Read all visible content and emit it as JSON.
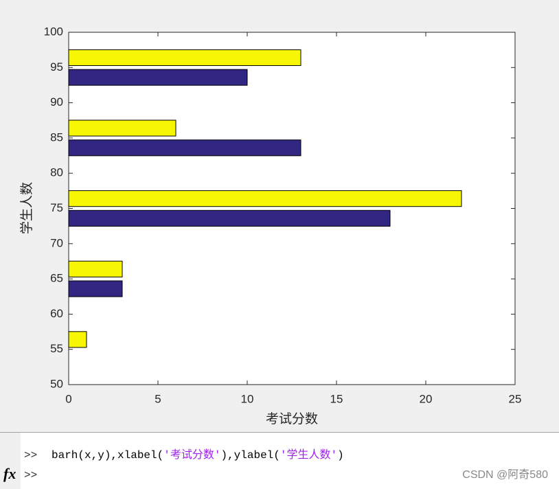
{
  "chart_data": {
    "type": "barh",
    "y": [
      55,
      65,
      75,
      85,
      95
    ],
    "series": [
      {
        "color": "#312783",
        "values": [
          0,
          3,
          18,
          13,
          10
        ]
      },
      {
        "color": "#f7f704",
        "values": [
          1,
          3,
          22,
          6,
          13
        ]
      }
    ],
    "xlim": [
      0,
      25
    ],
    "xticks": [
      0,
      5,
      10,
      15,
      20,
      25
    ],
    "ylim": [
      50,
      100
    ],
    "yticks": [
      50,
      55,
      60,
      65,
      70,
      75,
      80,
      85,
      90,
      95,
      100
    ],
    "xlabel": "考试分数",
    "ylabel": "学生人数"
  },
  "command_window": {
    "history": [
      {
        "prompt": ">>",
        "code_parts": [
          "barh(x,y),xlabel(",
          "'考试分数'",
          "),ylabel(",
          "'学生人数'",
          ")"
        ]
      }
    ],
    "prompt": ">>",
    "fx": "fx"
  },
  "watermark": "CSDN @阿奇580"
}
